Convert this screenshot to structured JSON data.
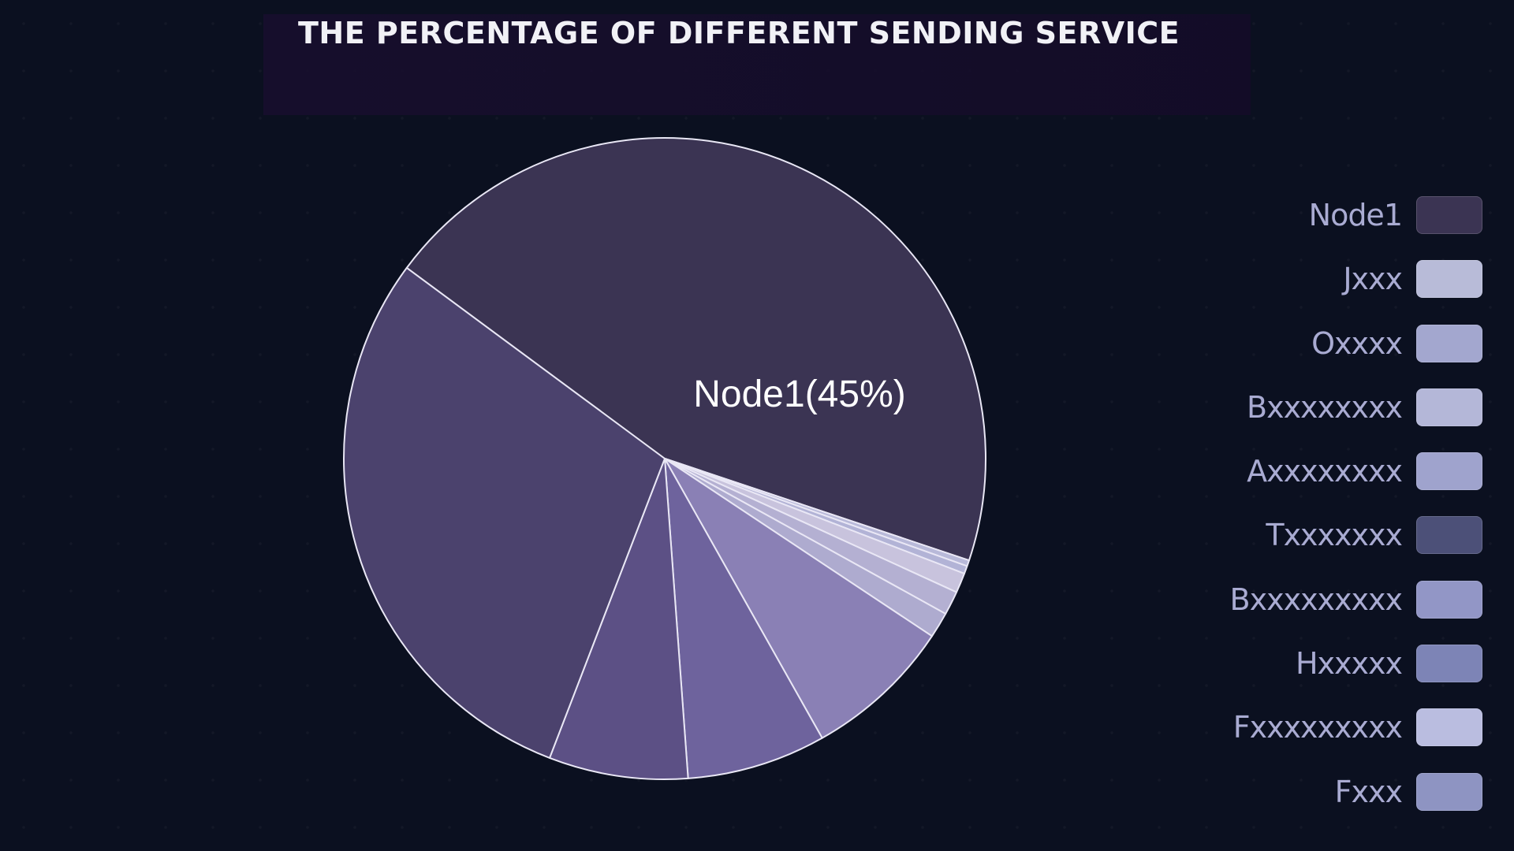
{
  "chart_data": {
    "type": "pie",
    "title": "THE PERCENTAGE OF DIFFERENT SENDING SERVICE",
    "categories": [
      "Node1",
      "Jxxx",
      "Oxxxx",
      "Bxxxxxxxx",
      "Axxxxxxxx",
      "Txxxxxxx",
      "Bxxxxxxxxx",
      "Hxxxxx",
      "Fxxxxxxxxx",
      "Fxxx"
    ],
    "values": [
      45,
      0.3,
      0.4,
      1.0,
      1.2,
      1.3,
      7.5,
      7.0,
      7.0,
      29.3
    ],
    "colors": [
      "#3b3453",
      "#b8b9d9",
      "#b2b3d6",
      "#c8c3dd",
      "#b4b0d2",
      "#aeabcf",
      "#8a80b5",
      "#6e639d",
      "#5c5085",
      "#4b426d"
    ],
    "legend_colors": [
      "#3b3453",
      "#b8bbd8",
      "#a3a7cf",
      "#b4b7d8",
      "#9fa3cd",
      "#4c5078",
      "#9296c6",
      "#7d84b6",
      "#babde0",
      "#8e94c2"
    ],
    "data_labels": [
      {
        "index": 0,
        "text": "Node1(45%)"
      }
    ],
    "legend_position": "right"
  }
}
